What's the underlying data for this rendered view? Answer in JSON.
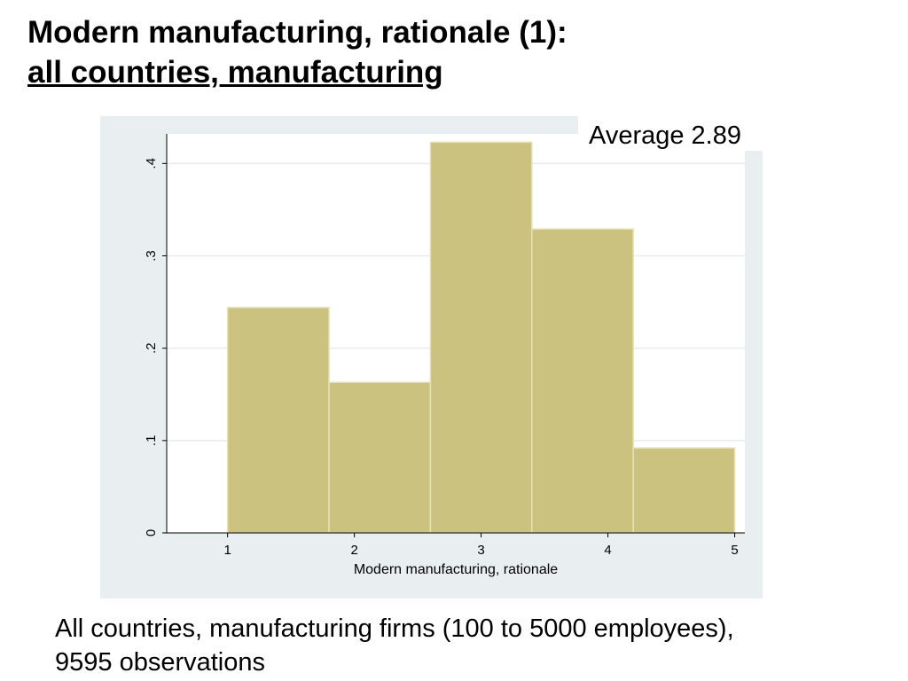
{
  "title": {
    "line1": "Modern manufacturing, rationale (1):",
    "line2": "all countries, manufacturing"
  },
  "annotation": "Average 2.89",
  "footer": {
    "line1": "All countries, manufacturing firms (100 to 5000 employees),",
    "line2": "9595 observations"
  },
  "colors": {
    "panel_background": "#e9eef0",
    "plot_background": "#ffffff",
    "bar_fill": "#cbc27f",
    "bar_stroke": "#e6e0b6",
    "grid": "#e8ecee",
    "axis": "#000000"
  },
  "chart_data": {
    "type": "bar",
    "subtype": "histogram",
    "title": "",
    "xlabel": "Modern manufacturing, rationale",
    "ylabel": "",
    "xlim": [
      0.52,
      5.08
    ],
    "ylim": [
      0,
      0.432
    ],
    "x_ticks": [
      1,
      2,
      3,
      4,
      5
    ],
    "x_tick_labels": [
      "1",
      "2",
      "3",
      "4",
      "5"
    ],
    "y_ticks": [
      0,
      0.1,
      0.2,
      0.3,
      0.4
    ],
    "y_tick_labels": [
      "0",
      ".1",
      ".2",
      ".3",
      ".4"
    ],
    "grid": true,
    "bins": [
      {
        "start": 1.0,
        "end": 1.8,
        "value": 0.244
      },
      {
        "start": 1.8,
        "end": 2.6,
        "value": 0.163
      },
      {
        "start": 2.6,
        "end": 3.4,
        "value": 0.423
      },
      {
        "start": 3.4,
        "end": 4.2,
        "value": 0.329
      },
      {
        "start": 4.2,
        "end": 5.0,
        "value": 0.092
      }
    ]
  }
}
